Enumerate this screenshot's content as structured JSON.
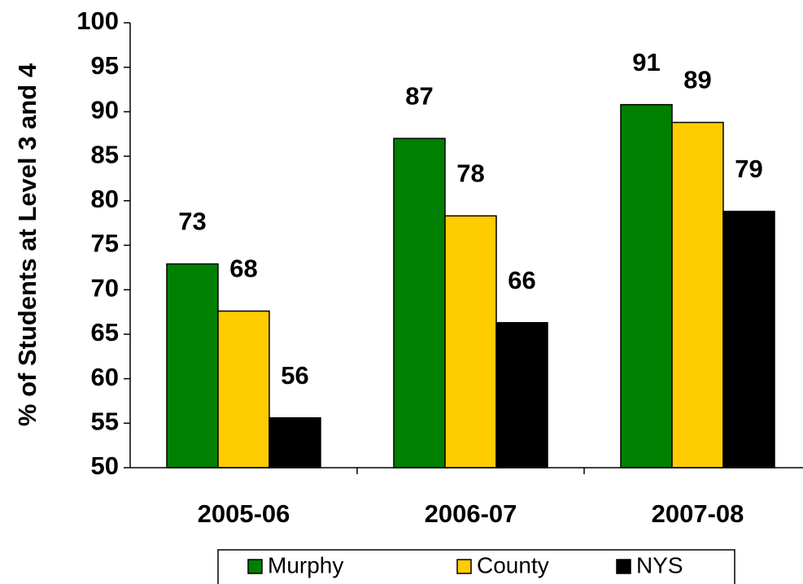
{
  "chart_data": {
    "type": "bar",
    "y_label": "% of Students at Level 3 and 4",
    "categories": [
      "2005-06",
      "2006-07",
      "2007-08"
    ],
    "series": [
      {
        "name": "Murphy",
        "color": "#008000",
        "values": [
          72.9,
          87.0,
          90.8
        ],
        "value_labels": [
          "73",
          "87",
          "91"
        ]
      },
      {
        "name": "County",
        "color": "#ffcc00",
        "values": [
          67.6,
          78.3,
          88.8
        ],
        "value_labels": [
          "68",
          "78",
          "89"
        ]
      },
      {
        "name": "NYS",
        "color": "#000000",
        "values": [
          55.6,
          66.3,
          78.8
        ],
        "value_labels": [
          "56",
          "66",
          "79"
        ]
      }
    ],
    "ylim": [
      50,
      100
    ],
    "yticks": [
      50,
      55,
      60,
      65,
      70,
      75,
      80,
      85,
      90,
      95,
      100
    ],
    "legend": "bottom"
  }
}
